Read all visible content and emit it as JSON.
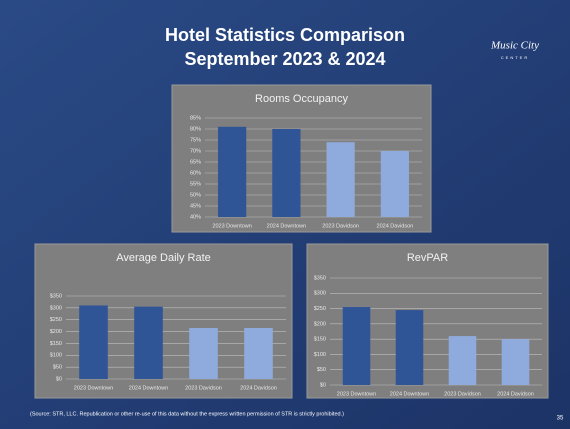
{
  "slide": {
    "title": "Hotel Statistics Comparison",
    "subtitle": "September 2023 & 2024",
    "logo": "Music City",
    "logo_sub": "CENTER",
    "source": "(Source: STR, LLC. Republication or other re-use of this data without the express written permission of STR is strictly prohibited.)",
    "page": "35"
  },
  "chart_data": [
    {
      "type": "bar",
      "title": "Rooms Occupancy",
      "categories": [
        "2023 Downtown",
        "2024 Downtown",
        "2023 Davidson",
        "2024 Davidson"
      ],
      "values": [
        81,
        80,
        74,
        70
      ],
      "colors": [
        "#2f5597",
        "#2f5597",
        "#8faadc",
        "#8faadc"
      ],
      "ylim": [
        40,
        85
      ],
      "yticks": [
        {
          "value": 40,
          "label": "40%"
        },
        {
          "value": 45,
          "label": "45%"
        },
        {
          "value": 50,
          "label": "50%"
        },
        {
          "value": 55,
          "label": "55%"
        },
        {
          "value": 60,
          "label": "60%"
        },
        {
          "value": 65,
          "label": "65%"
        },
        {
          "value": 70,
          "label": "70%"
        },
        {
          "value": 75,
          "label": "75%"
        },
        {
          "value": 80,
          "label": "80%"
        },
        {
          "value": 85,
          "label": "85%"
        }
      ],
      "grid": true
    },
    {
      "type": "bar",
      "title": "Average Daily Rate",
      "categories": [
        "2023 Downtown",
        "2024 Downtown",
        "2023 Davidson",
        "2024 Davidson"
      ],
      "values": [
        310,
        305,
        215,
        215
      ],
      "colors": [
        "#2f5597",
        "#2f5597",
        "#8faadc",
        "#8faadc"
      ],
      "ylim": [
        0,
        350
      ],
      "yticks": [
        {
          "value": 0,
          "label": "$0"
        },
        {
          "value": 50,
          "label": "$50"
        },
        {
          "value": 100,
          "label": "$100"
        },
        {
          "value": 150,
          "label": "$150"
        },
        {
          "value": 200,
          "label": "$200"
        },
        {
          "value": 250,
          "label": "$250"
        },
        {
          "value": 300,
          "label": "$300"
        },
        {
          "value": 350,
          "label": "$350"
        }
      ],
      "grid": true
    },
    {
      "type": "bar",
      "title": "RevPAR",
      "categories": [
        "2023 Downtown",
        "2024 Downtown",
        "2023 Davidson",
        "2024 Davidson"
      ],
      "values": [
        255,
        245,
        160,
        150
      ],
      "colors": [
        "#2f5597",
        "#2f5597",
        "#8faadc",
        "#8faadc"
      ],
      "ylim": [
        0,
        350
      ],
      "yticks": [
        {
          "value": 0,
          "label": "$0"
        },
        {
          "value": 50,
          "label": "$50"
        },
        {
          "value": 100,
          "label": "$100"
        },
        {
          "value": 150,
          "label": "$150"
        },
        {
          "value": 200,
          "label": "$200"
        },
        {
          "value": 250,
          "label": "$250"
        },
        {
          "value": 300,
          "label": "$300"
        },
        {
          "value": 350,
          "label": "$350"
        }
      ],
      "grid": true
    }
  ]
}
